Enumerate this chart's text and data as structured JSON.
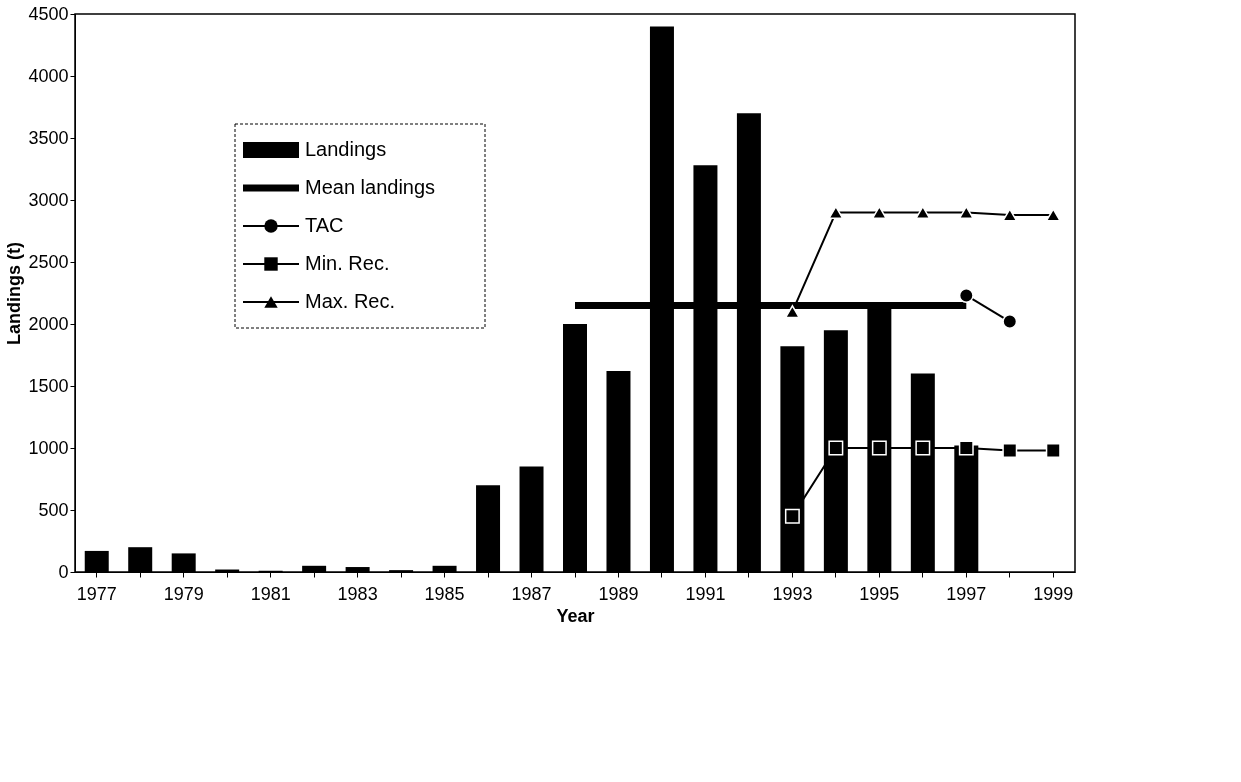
{
  "chart_data": {
    "type": "bar",
    "xlabel": "Year",
    "ylabel": "Landings (t)",
    "categories": [
      "1977",
      null,
      "1979",
      null,
      "1981",
      null,
      "1983",
      null,
      "1985",
      null,
      "1987",
      null,
      "1989",
      null,
      "1991",
      null,
      "1993",
      null,
      "1995",
      null,
      "1997",
      null,
      "1999"
    ],
    "series": [
      {
        "name": "Landings",
        "color": "#000000",
        "values": [
          170,
          200,
          150,
          20,
          10,
          50,
          40,
          15,
          50,
          700,
          850,
          2000,
          1620,
          4400,
          3280,
          3700,
          1820,
          1950,
          2120,
          1600,
          1020,
          null,
          null
        ]
      },
      {
        "name": "Mean landings",
        "type": "line",
        "color": "#000000",
        "marker": "none",
        "values": [
          null,
          null,
          null,
          null,
          null,
          null,
          null,
          null,
          null,
          null,
          null,
          2150,
          2150,
          2150,
          2150,
          2150,
          2150,
          2150,
          2150,
          2150,
          2150,
          null,
          null
        ]
      },
      {
        "name": "TAC",
        "type": "line",
        "color": "#000000",
        "marker": "circle",
        "values": [
          null,
          null,
          null,
          null,
          null,
          null,
          null,
          null,
          null,
          null,
          null,
          null,
          null,
          null,
          null,
          null,
          null,
          null,
          null,
          null,
          2230,
          2020,
          null
        ]
      },
      {
        "name": "Min. Rec.",
        "type": "line",
        "color": "#000000",
        "marker": "square",
        "values": [
          null,
          null,
          null,
          null,
          null,
          null,
          null,
          null,
          null,
          null,
          null,
          null,
          null,
          null,
          null,
          null,
          450,
          1000,
          1000,
          1000,
          1000,
          980,
          980
        ]
      },
      {
        "name": "Max. Rec.",
        "type": "line",
        "color": "#000000",
        "marker": "triangle",
        "values": [
          null,
          null,
          null,
          null,
          null,
          null,
          null,
          null,
          null,
          null,
          null,
          null,
          null,
          null,
          null,
          null,
          2100,
          2900,
          2900,
          2900,
          2900,
          2880,
          2880
        ]
      }
    ],
    "ylim": [
      0,
      4500
    ],
    "yticks": [
      0,
      500,
      1000,
      1500,
      2000,
      2500,
      3000,
      3500,
      4000,
      4500
    ],
    "grid": false,
    "legend": "top left"
  }
}
